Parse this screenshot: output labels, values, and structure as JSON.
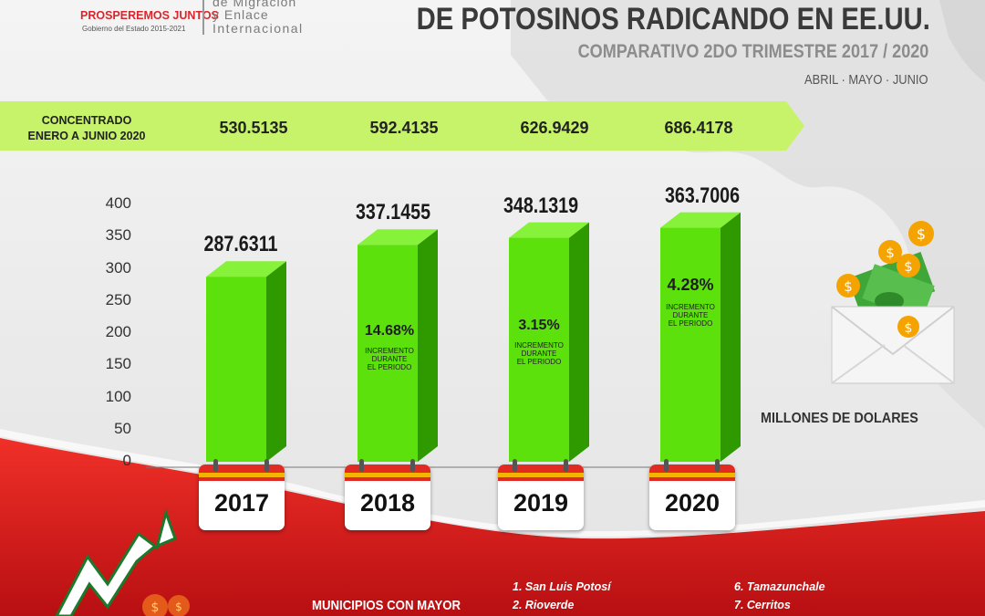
{
  "branding": {
    "slogan": "PROSPEREMOS JUNTOS",
    "government": "Gobierno del Estado 2015-2021",
    "department_lines": [
      "de Migración",
      "y Enlace",
      "Internacional"
    ]
  },
  "title": "DE POTOSINOS RADICANDO EN EE.UU.",
  "subtitle": "COMPARATIVO 2DO TRIMESTRE 2017 / 2020",
  "months": "ABRIL · MAYO · JUNIO",
  "concentrado": {
    "label_line1": "CONCENTRADO",
    "label_line2": "ENERO A JUNIO 2020",
    "values": [
      "530.5135",
      "592.4135",
      "626.9429",
      "686.4178"
    ]
  },
  "chart_data": {
    "type": "bar",
    "categories": [
      "2017",
      "2018",
      "2019",
      "2020"
    ],
    "values": [
      287.6311,
      337.1455,
      348.1319,
      363.7006
    ],
    "value_labels": [
      "287.6311",
      "337.1455",
      "348.1319",
      "363.7006"
    ],
    "ylim": [
      0,
      400
    ],
    "yticks": [
      "0",
      "50",
      "100",
      "150",
      "200",
      "250",
      "300",
      "350",
      "400"
    ],
    "increments": [
      {
        "pct": "",
        "note": []
      },
      {
        "pct": "14.68%",
        "note": [
          "INCREMENTO",
          "DURANTE",
          "EL PERIODO"
        ]
      },
      {
        "pct": "3.15%",
        "note": [
          "INCREMENTO",
          "DURANTE",
          "EL PERIODO"
        ]
      },
      {
        "pct": "4.28%",
        "note": [
          "INCREMENTO",
          "DURANTE",
          "EL PERIODO"
        ]
      }
    ],
    "unit_label": "MILLONES DE DOLARES",
    "bar_color": "#5ce10c",
    "bar_side_color": "#2f9a00",
    "bar_top_color": "#86f23a"
  },
  "municipios": {
    "heading": "MUNICIPIOS CON MAYOR",
    "items": [
      "1. San Luis Potosí",
      "2. Rioverde",
      "6. Tamazunchale",
      "7. Cerritos"
    ]
  },
  "colors": {
    "band": "#c6f36a",
    "red": "#e01c1c",
    "title": "#3a3a3a"
  }
}
